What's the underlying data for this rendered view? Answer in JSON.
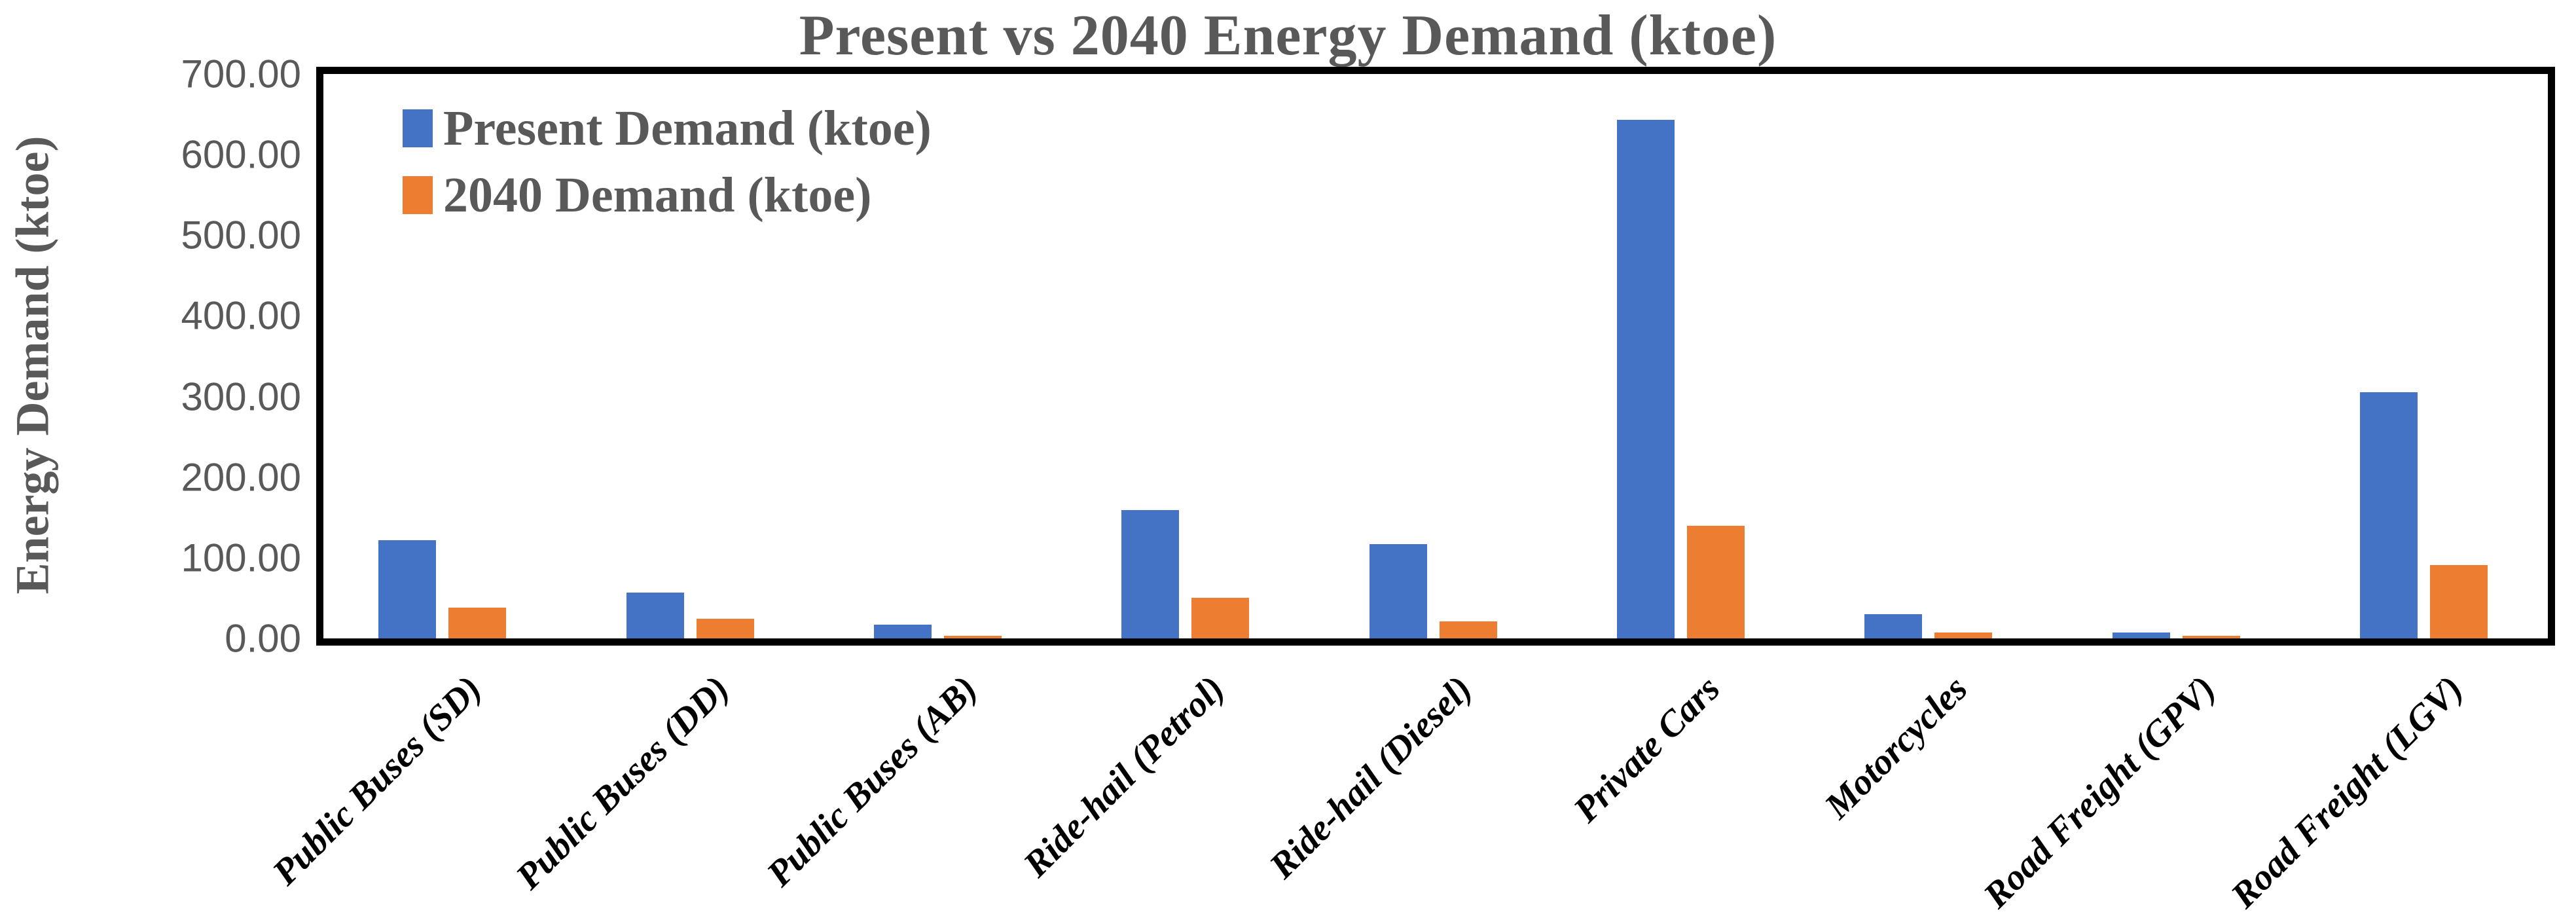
{
  "title": "Present vs 2040 Energy Demand (ktoe)",
  "y_axis": {
    "label": "Energy Demand (ktoe)",
    "min": 0,
    "max": 700,
    "tick_step": 100,
    "tick_decimals": 2
  },
  "legend": {
    "items": [
      {
        "label": "Present Demand (ktoe)",
        "color": "#4472C4"
      },
      {
        "label": "2040 Demand (ktoe)",
        "color": "#ED7D31"
      }
    ]
  },
  "colors": {
    "present_series": "#4472C4",
    "future_series": "#ED7D31",
    "axis_text": "#595959",
    "category_text": "#000000",
    "plot_border": "#000000",
    "background": "#FFFFFF"
  },
  "chart_data": {
    "type": "bar",
    "title": "Present vs 2040 Energy Demand (ktoe)",
    "xlabel": "",
    "ylabel": "Energy Demand (ktoe)",
    "ylim": [
      0,
      700
    ],
    "ytick_step": 100,
    "ytick_labels": [
      "700.00",
      "600.00",
      "500.00",
      "400.00",
      "300.00",
      "200.00",
      "100.00",
      "0.00"
    ],
    "grid": false,
    "legend_position": "top-left-inside",
    "categories": [
      "Public Buses (SD)",
      "Public Buses (DD)",
      "Public Buses (AB)",
      "Ride-hail (Petrol)",
      "Ride-hail (Diesel)",
      "Private Cars",
      "Motorcycles",
      "Road Freight (GPV)",
      "Road Freight (LGV)"
    ],
    "series": [
      {
        "name": "Present Demand (ktoe)",
        "color": "#4472C4",
        "values": [
          122,
          57,
          17,
          159,
          117,
          643,
          30,
          7,
          305
        ]
      },
      {
        "name": "2040 Demand (ktoe)",
        "color": "#ED7D31",
        "values": [
          38,
          24,
          3,
          50,
          21,
          140,
          7,
          3,
          91
        ]
      }
    ]
  }
}
